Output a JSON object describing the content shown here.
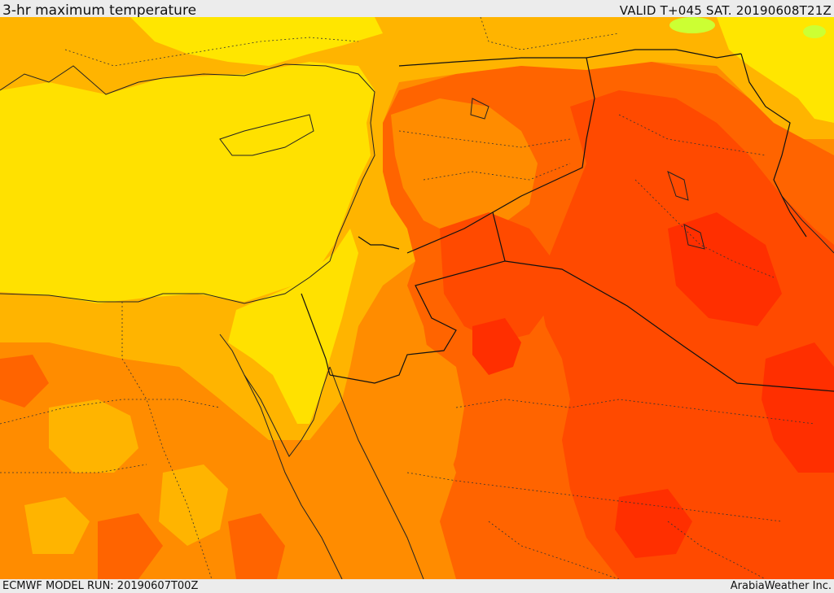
{
  "header": {
    "title": "3-hr maximum temperature",
    "valid": "VALID T+045 SAT. 20190608T21Z"
  },
  "footer": {
    "model_run": "ECMWF MODEL RUN: 20190607T00Z",
    "credit": "ArabiaWeather Inc."
  },
  "map": {
    "field": "3-hr maximum temperature",
    "colors": {
      "sea": "#ffdf00",
      "yellow": "#ffe600",
      "light_orange": "#ffb400",
      "orange": "#ff8c00",
      "dark_orange": "#ff6400",
      "red": "#ff4a00",
      "deep_red": "#ff2f00",
      "green": "#ccff33",
      "border_line": "#111111",
      "coast_line": "#222222"
    }
  }
}
